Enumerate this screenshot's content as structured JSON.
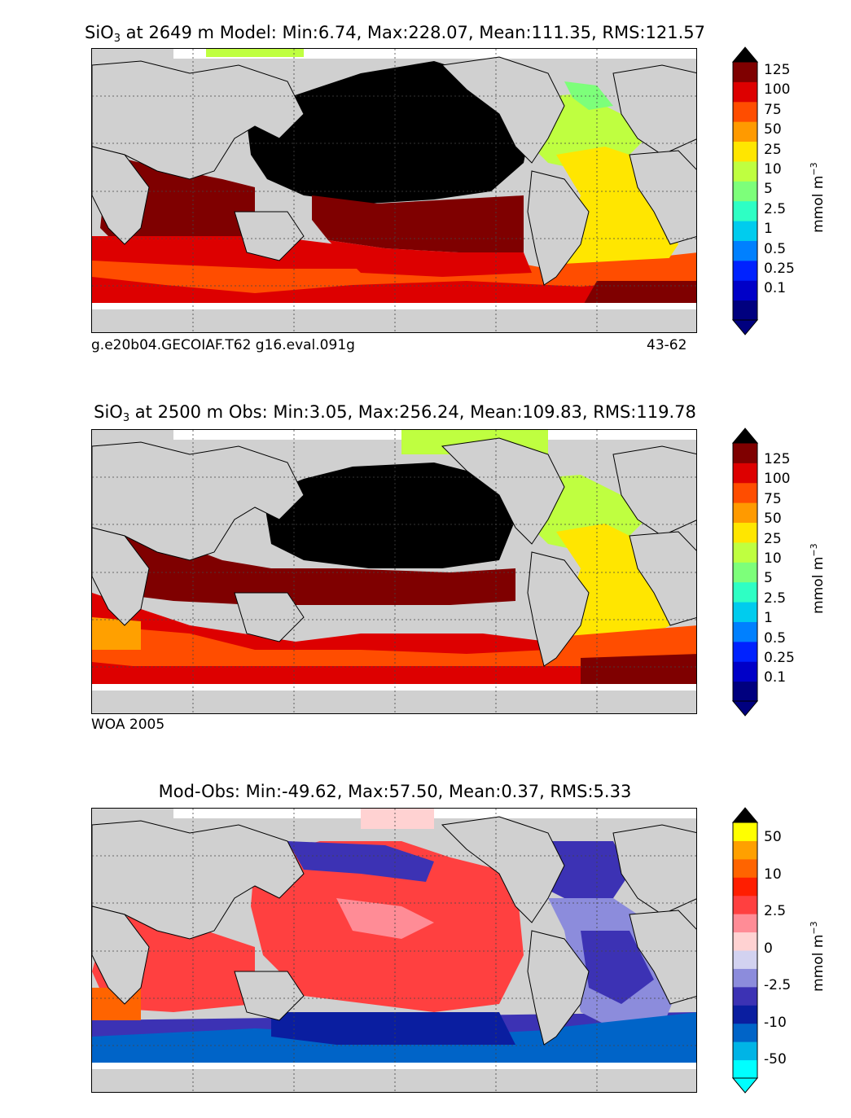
{
  "panels": [
    {
      "title_prefix": "SiO",
      "title_sub": "3",
      "title_rest": " at 2649 m Model: Min:6.74, Max:228.07, Mean:111.35, RMS:121.57",
      "caption_left": "g.e20b04.GECOIAF.T62 g16.eval.091g",
      "caption_right": "43-62",
      "colorbar_labels": [
        "125",
        "100",
        "75",
        "50",
        "25",
        "10",
        "5",
        "2.5",
        "1",
        "0.5",
        "0.25",
        "0.1"
      ],
      "unit": "mmol m",
      "unit_sup": "−3"
    },
    {
      "title_prefix": "SiO",
      "title_sub": "3",
      "title_rest": " at 2500 m Obs: Min:3.05, Max:256.24, Mean:109.83, RMS:119.78",
      "caption_left": "WOA 2005",
      "caption_right": "",
      "colorbar_labels": [
        "125",
        "100",
        "75",
        "50",
        "25",
        "10",
        "5",
        "2.5",
        "1",
        "0.5",
        "0.25",
        "0.1"
      ],
      "unit": "mmol m",
      "unit_sup": "−3"
    },
    {
      "title_prefix": "",
      "title_sub": "",
      "title_rest": "Mod-Obs: Min:-49.62, Max:57.50, Mean:0.37, RMS:5.33",
      "caption_left": "",
      "caption_right": "",
      "colorbar_labels": [
        "50",
        "10",
        "2.5",
        "0",
        "-2.5",
        "-10",
        "-50"
      ],
      "unit": "mmol m",
      "unit_sup": "−3"
    }
  ],
  "colors": {
    "conc_scale": [
      "#00007f",
      "#0000c8",
      "#0022ff",
      "#0080ff",
      "#00ccee",
      "#2effc4",
      "#7dff7a",
      "#bfff40",
      "#ffe600",
      "#ff9a00",
      "#ff4d00",
      "#dd0000",
      "#7f0000"
    ],
    "diff_scale": [
      "#00ffff",
      "#00b4e6",
      "#0064c8",
      "#0a1ea0",
      "#3c32b4",
      "#8c8cdc",
      "#d2d2f0",
      "#ffd2d2",
      "#ff8c96",
      "#ff4040",
      "#ff1e00",
      "#ff6400",
      "#ffa000",
      "#ffff00"
    ],
    "land": "#d0d0d0",
    "nodata": "#ffffff"
  },
  "icons": [
    "triangle-up-extend",
    "triangle-down-extend"
  ]
}
